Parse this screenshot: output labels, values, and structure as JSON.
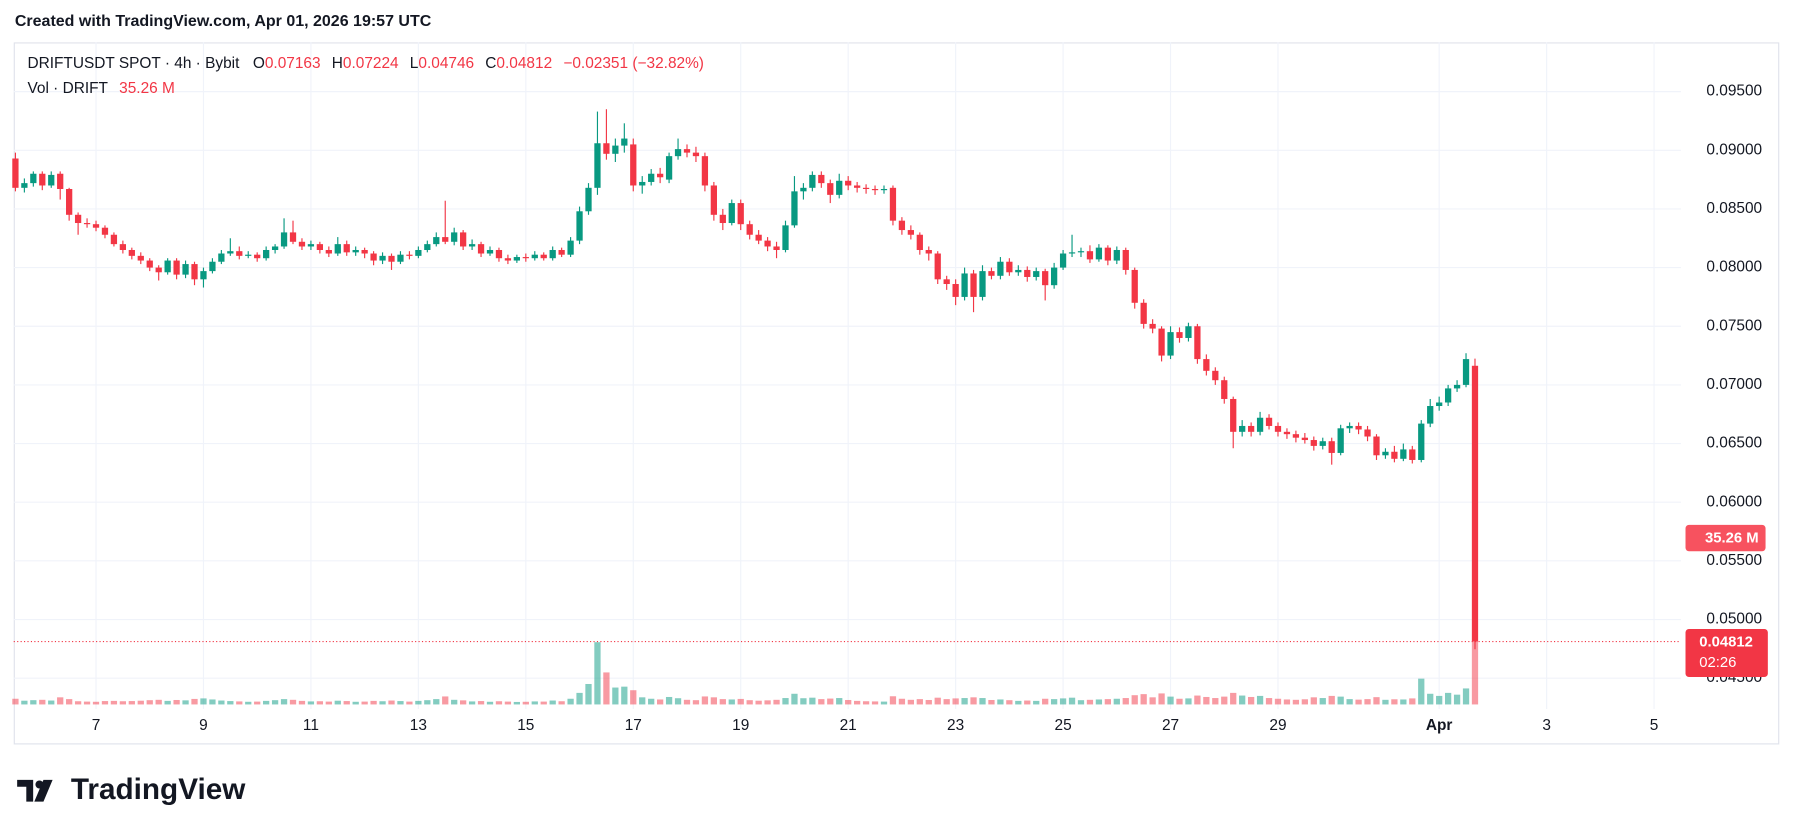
{
  "header": {
    "created": "Created with TradingView.com, Apr 01, 2026 19:57 UTC"
  },
  "chart_data": {
    "type": "candlestick",
    "title": "DRIFTUSDT SPOT · 4h · Bybit",
    "ohlc_labels": [
      "O",
      "H",
      "L",
      "C"
    ],
    "change": "−0.02351 (−32.82%)",
    "volume_title": "Vol · DRIFT",
    "volume_label": "35.26 M",
    "countdown": "02:26",
    "up_color": "#089981",
    "down_color": "#f23645",
    "grid": true,
    "xlim": [
      -0.19,
      186
    ],
    "ylim": [
      0.04237,
      0.0992
    ],
    "volume_lim": [
      0,
      36
    ],
    "yticks": [
      {
        "value": 0.045,
        "label": "0.04500"
      },
      {
        "value": 0.05,
        "label": "0.05000"
      },
      {
        "value": 0.055,
        "label": "0.05500"
      },
      {
        "value": 0.06,
        "label": "0.06000"
      },
      {
        "value": 0.065,
        "label": "0.06500"
      },
      {
        "value": 0.07,
        "label": "0.07000"
      },
      {
        "value": 0.075,
        "label": "0.07500"
      },
      {
        "value": 0.08,
        "label": "0.08000"
      },
      {
        "value": 0.085,
        "label": "0.08500"
      },
      {
        "value": 0.09,
        "label": "0.09000"
      },
      {
        "value": 0.095,
        "label": "0.09500"
      }
    ],
    "xticks": [
      {
        "value": 9,
        "label": "7"
      },
      {
        "value": 21,
        "label": "9"
      },
      {
        "value": 33,
        "label": "11"
      },
      {
        "value": 45,
        "label": "13"
      },
      {
        "value": 57,
        "label": "15"
      },
      {
        "value": 69,
        "label": "17"
      },
      {
        "value": 81,
        "label": "19"
      },
      {
        "value": 93,
        "label": "21"
      },
      {
        "value": 105,
        "label": "23"
      },
      {
        "value": 117,
        "label": "25"
      },
      {
        "value": 129,
        "label": "27"
      },
      {
        "value": 141,
        "label": "29"
      },
      {
        "value": 159,
        "label": "Apr"
      },
      {
        "value": 171,
        "label": "3"
      },
      {
        "value": 183,
        "label": "5"
      }
    ],
    "candles": [
      [
        0.0893,
        0.0898,
        0.0865,
        0.0868,
        3.2
      ],
      [
        0.0868,
        0.0876,
        0.0864,
        0.0872,
        2.1
      ],
      [
        0.0872,
        0.0882,
        0.0869,
        0.088,
        2.4
      ],
      [
        0.088,
        0.0882,
        0.0866,
        0.087,
        2.6
      ],
      [
        0.087,
        0.0882,
        0.0868,
        0.0879,
        2.2
      ],
      [
        0.088,
        0.0882,
        0.0858,
        0.0867,
        4.0
      ],
      [
        0.0867,
        0.0868,
        0.084,
        0.0845,
        3.0
      ],
      [
        0.0845,
        0.0847,
        0.0828,
        0.0838,
        1.8
      ],
      [
        0.0838,
        0.0842,
        0.0834,
        0.0837,
        1.6
      ],
      [
        0.0837,
        0.084,
        0.0831,
        0.0834,
        1.5
      ],
      [
        0.0834,
        0.0836,
        0.0825,
        0.0828,
        1.9
      ],
      [
        0.0828,
        0.083,
        0.0818,
        0.082,
        2.0
      ],
      [
        0.082,
        0.0823,
        0.0812,
        0.0815,
        1.8
      ],
      [
        0.0815,
        0.0817,
        0.0807,
        0.081,
        1.9
      ],
      [
        0.081,
        0.0813,
        0.0803,
        0.0806,
        2.1
      ],
      [
        0.0806,
        0.0808,
        0.0797,
        0.08,
        2.4
      ],
      [
        0.08,
        0.0802,
        0.0789,
        0.0796,
        2.6
      ],
      [
        0.0796,
        0.0808,
        0.0794,
        0.0806,
        2.0
      ],
      [
        0.0806,
        0.0808,
        0.079,
        0.0794,
        2.5
      ],
      [
        0.0794,
        0.0806,
        0.0791,
        0.0803,
        2.3
      ],
      [
        0.0803,
        0.0805,
        0.0785,
        0.079,
        3.1
      ],
      [
        0.079,
        0.08,
        0.0783,
        0.0797,
        3.4
      ],
      [
        0.0797,
        0.0808,
        0.0795,
        0.0805,
        2.8
      ],
      [
        0.0805,
        0.0815,
        0.0803,
        0.0812,
        2.2
      ],
      [
        0.0812,
        0.0825,
        0.081,
        0.0814,
        1.9
      ],
      [
        0.0814,
        0.0818,
        0.0807,
        0.081,
        1.7
      ],
      [
        0.081,
        0.0814,
        0.0808,
        0.0811,
        1.5
      ],
      [
        0.0811,
        0.0813,
        0.0805,
        0.0808,
        1.6
      ],
      [
        0.0808,
        0.0818,
        0.0806,
        0.0815,
        2.0
      ],
      [
        0.0815,
        0.082,
        0.0812,
        0.0818,
        2.4
      ],
      [
        0.0818,
        0.0842,
        0.0816,
        0.083,
        3.0
      ],
      [
        0.083,
        0.084,
        0.082,
        0.0822,
        2.6
      ],
      [
        0.0822,
        0.0825,
        0.0815,
        0.0818,
        2.0
      ],
      [
        0.0818,
        0.0823,
        0.0815,
        0.082,
        1.7
      ],
      [
        0.082,
        0.0822,
        0.0812,
        0.0815,
        1.8
      ],
      [
        0.0815,
        0.0818,
        0.0809,
        0.0812,
        1.6
      ],
      [
        0.0812,
        0.0826,
        0.081,
        0.082,
        2.1
      ],
      [
        0.082,
        0.0823,
        0.081,
        0.0813,
        1.9
      ],
      [
        0.0813,
        0.0818,
        0.081,
        0.0815,
        1.5
      ],
      [
        0.0815,
        0.0817,
        0.0808,
        0.0812,
        1.6
      ],
      [
        0.0812,
        0.0814,
        0.0802,
        0.0806,
        2.0
      ],
      [
        0.0806,
        0.0813,
        0.0803,
        0.081,
        1.8
      ],
      [
        0.081,
        0.0812,
        0.0798,
        0.0805,
        2.2
      ],
      [
        0.0805,
        0.0814,
        0.0803,
        0.0811,
        1.9
      ],
      [
        0.0811,
        0.0814,
        0.0807,
        0.081,
        1.6
      ],
      [
        0.081,
        0.0818,
        0.0808,
        0.0815,
        2.0
      ],
      [
        0.0815,
        0.0823,
        0.0813,
        0.082,
        2.4
      ],
      [
        0.082,
        0.083,
        0.0818,
        0.0826,
        3.0
      ],
      [
        0.0826,
        0.0857,
        0.082,
        0.0822,
        4.5
      ],
      [
        0.0822,
        0.0834,
        0.0819,
        0.083,
        2.6
      ],
      [
        0.083,
        0.0832,
        0.0815,
        0.0818,
        2.3
      ],
      [
        0.0818,
        0.0824,
        0.0815,
        0.082,
        1.7
      ],
      [
        0.082,
        0.0822,
        0.0809,
        0.0812,
        1.9
      ],
      [
        0.0812,
        0.0818,
        0.081,
        0.0815,
        1.5
      ],
      [
        0.0815,
        0.0817,
        0.0805,
        0.0808,
        1.8
      ],
      [
        0.0808,
        0.0811,
        0.0803,
        0.0806,
        1.6
      ],
      [
        0.0806,
        0.0811,
        0.0804,
        0.0809,
        1.4
      ],
      [
        0.0809,
        0.0812,
        0.0805,
        0.0808,
        1.5
      ],
      [
        0.0808,
        0.0814,
        0.0806,
        0.0811,
        1.7
      ],
      [
        0.0811,
        0.0813,
        0.0806,
        0.0808,
        1.6
      ],
      [
        0.0808,
        0.0818,
        0.0806,
        0.0815,
        2.2
      ],
      [
        0.0815,
        0.0817,
        0.0809,
        0.0811,
        1.8
      ],
      [
        0.0811,
        0.0826,
        0.0809,
        0.0823,
        3.2
      ],
      [
        0.0823,
        0.0852,
        0.082,
        0.0848,
        6.5
      ],
      [
        0.0848,
        0.0872,
        0.0845,
        0.0868,
        11.5
      ],
      [
        0.0868,
        0.0933,
        0.0862,
        0.0906,
        35.0
      ],
      [
        0.0906,
        0.0935,
        0.0892,
        0.0897,
        18.0
      ],
      [
        0.0897,
        0.091,
        0.089,
        0.0904,
        9.5
      ],
      [
        0.0904,
        0.0923,
        0.0898,
        0.091,
        10.0
      ],
      [
        0.0905,
        0.091,
        0.0865,
        0.087,
        8.0
      ],
      [
        0.087,
        0.0878,
        0.0863,
        0.0873,
        4.0
      ],
      [
        0.0873,
        0.0884,
        0.087,
        0.088,
        3.2
      ],
      [
        0.088,
        0.0885,
        0.0872,
        0.0877,
        2.8
      ],
      [
        0.0875,
        0.0898,
        0.0872,
        0.0895,
        4.2
      ],
      [
        0.0895,
        0.091,
        0.0892,
        0.0901,
        3.5
      ],
      [
        0.0901,
        0.0905,
        0.0894,
        0.0898,
        2.6
      ],
      [
        0.0898,
        0.0903,
        0.089,
        0.0895,
        2.4
      ],
      [
        0.0895,
        0.0898,
        0.0865,
        0.087,
        4.5
      ],
      [
        0.087,
        0.0873,
        0.084,
        0.0845,
        4.0
      ],
      [
        0.0845,
        0.085,
        0.0832,
        0.0838,
        3.0
      ],
      [
        0.0838,
        0.0858,
        0.0836,
        0.0855,
        2.8
      ],
      [
        0.0855,
        0.0858,
        0.0832,
        0.0837,
        3.1
      ],
      [
        0.0837,
        0.084,
        0.0824,
        0.0828,
        2.4
      ],
      [
        0.0828,
        0.0832,
        0.082,
        0.0823,
        2.1
      ],
      [
        0.0823,
        0.0826,
        0.0814,
        0.0818,
        2.3
      ],
      [
        0.0818,
        0.0822,
        0.0808,
        0.0815,
        2.6
      ],
      [
        0.0815,
        0.084,
        0.0813,
        0.0836,
        3.6
      ],
      [
        0.0836,
        0.0878,
        0.0834,
        0.0865,
        6.0
      ],
      [
        0.0865,
        0.0872,
        0.0858,
        0.0868,
        3.5
      ],
      [
        0.0868,
        0.0882,
        0.0865,
        0.0879,
        3.8
      ],
      [
        0.0879,
        0.0882,
        0.0868,
        0.0872,
        3.0
      ],
      [
        0.0872,
        0.0875,
        0.0855,
        0.0862,
        3.3
      ],
      [
        0.0862,
        0.088,
        0.0859,
        0.0874,
        3.6
      ],
      [
        0.0874,
        0.0878,
        0.0866,
        0.087,
        2.5
      ],
      [
        0.087,
        0.0873,
        0.0864,
        0.0868,
        2.0
      ],
      [
        0.0868,
        0.0871,
        0.0863,
        0.0867,
        1.8
      ],
      [
        0.0867,
        0.087,
        0.0862,
        0.0866,
        1.7
      ],
      [
        0.0866,
        0.087,
        0.0863,
        0.0867,
        1.6
      ],
      [
        0.0868,
        0.087,
        0.0836,
        0.084,
        4.6
      ],
      [
        0.084,
        0.0843,
        0.0828,
        0.0832,
        3.2
      ],
      [
        0.0832,
        0.0836,
        0.0824,
        0.0828,
        2.6
      ],
      [
        0.0828,
        0.083,
        0.0811,
        0.0815,
        3.0
      ],
      [
        0.0815,
        0.0818,
        0.0806,
        0.0812,
        2.5
      ],
      [
        0.0812,
        0.0814,
        0.0786,
        0.079,
        3.8
      ],
      [
        0.079,
        0.0793,
        0.0781,
        0.0786,
        3.0
      ],
      [
        0.0786,
        0.079,
        0.0768,
        0.0775,
        3.4
      ],
      [
        0.0775,
        0.08,
        0.0772,
        0.0795,
        3.6
      ],
      [
        0.0795,
        0.0798,
        0.0762,
        0.0775,
        4.0
      ],
      [
        0.0775,
        0.0802,
        0.0772,
        0.0797,
        3.6
      ],
      [
        0.0797,
        0.08,
        0.079,
        0.0793,
        2.5
      ],
      [
        0.0793,
        0.0809,
        0.079,
        0.0805,
        2.8
      ],
      [
        0.0805,
        0.0808,
        0.0793,
        0.0796,
        2.4
      ],
      [
        0.0796,
        0.0802,
        0.0793,
        0.0798,
        2.0
      ],
      [
        0.0798,
        0.0801,
        0.0788,
        0.0792,
        2.2
      ],
      [
        0.0792,
        0.08,
        0.0789,
        0.0797,
        2.0
      ],
      [
        0.0797,
        0.0799,
        0.0772,
        0.0785,
        3.2
      ],
      [
        0.0785,
        0.0804,
        0.0782,
        0.08,
        3.0
      ],
      [
        0.08,
        0.0815,
        0.0798,
        0.0812,
        3.4
      ],
      [
        0.0812,
        0.0828,
        0.0809,
        0.0813,
        3.8
      ],
      [
        0.0813,
        0.0817,
        0.0809,
        0.0814,
        2.4
      ],
      [
        0.0814,
        0.0819,
        0.0804,
        0.0807,
        2.6
      ],
      [
        0.0807,
        0.082,
        0.0805,
        0.0817,
        2.8
      ],
      [
        0.0817,
        0.0819,
        0.0802,
        0.0806,
        3.0
      ],
      [
        0.0806,
        0.0818,
        0.0803,
        0.0815,
        3.2
      ],
      [
        0.0815,
        0.0817,
        0.0794,
        0.0798,
        3.6
      ],
      [
        0.0798,
        0.08,
        0.0765,
        0.077,
        5.2
      ],
      [
        0.077,
        0.0773,
        0.0748,
        0.0752,
        5.8
      ],
      [
        0.0752,
        0.0756,
        0.0744,
        0.0748,
        4.0
      ],
      [
        0.0748,
        0.075,
        0.072,
        0.0725,
        6.2
      ],
      [
        0.0725,
        0.075,
        0.0722,
        0.0745,
        4.4
      ],
      [
        0.0745,
        0.0749,
        0.0736,
        0.074,
        3.2
      ],
      [
        0.074,
        0.0753,
        0.0737,
        0.075,
        3.4
      ],
      [
        0.075,
        0.0752,
        0.0718,
        0.0722,
        5.0
      ],
      [
        0.0722,
        0.0726,
        0.0708,
        0.0712,
        4.2
      ],
      [
        0.0712,
        0.0715,
        0.07,
        0.0704,
        3.6
      ],
      [
        0.0704,
        0.0707,
        0.0684,
        0.0688,
        4.4
      ],
      [
        0.0688,
        0.069,
        0.0646,
        0.066,
        6.5
      ],
      [
        0.066,
        0.067,
        0.0656,
        0.0665,
        5.0
      ],
      [
        0.0665,
        0.0668,
        0.0656,
        0.066,
        4.2
      ],
      [
        0.066,
        0.0677,
        0.0657,
        0.0672,
        4.8
      ],
      [
        0.0672,
        0.0675,
        0.0662,
        0.0665,
        3.6
      ],
      [
        0.0665,
        0.0668,
        0.0656,
        0.066,
        3.2
      ],
      [
        0.066,
        0.0663,
        0.0654,
        0.0658,
        2.8
      ],
      [
        0.0658,
        0.0661,
        0.0651,
        0.0655,
        2.6
      ],
      [
        0.0655,
        0.0659,
        0.065,
        0.0653,
        2.9
      ],
      [
        0.0653,
        0.0656,
        0.0644,
        0.0648,
        4.0
      ],
      [
        0.0648,
        0.0655,
        0.0645,
        0.0652,
        3.6
      ],
      [
        0.0652,
        0.0655,
        0.0632,
        0.0642,
        4.8
      ],
      [
        0.0642,
        0.0666,
        0.064,
        0.0663,
        4.4
      ],
      [
        0.0663,
        0.0668,
        0.0659,
        0.0665,
        3.0
      ],
      [
        0.0665,
        0.0668,
        0.0658,
        0.0662,
        2.7
      ],
      [
        0.0662,
        0.0665,
        0.0652,
        0.0656,
        3.0
      ],
      [
        0.0656,
        0.0658,
        0.0636,
        0.064,
        4.1
      ],
      [
        0.064,
        0.0646,
        0.0637,
        0.0643,
        2.6
      ],
      [
        0.0643,
        0.0648,
        0.0634,
        0.0637,
        2.9
      ],
      [
        0.0637,
        0.065,
        0.0635,
        0.0645,
        2.8
      ],
      [
        0.0645,
        0.0648,
        0.0633,
        0.0636,
        3.4
      ],
      [
        0.0636,
        0.067,
        0.0634,
        0.0667,
        14.5
      ],
      [
        0.0667,
        0.0688,
        0.0664,
        0.0682,
        6.0
      ],
      [
        0.0682,
        0.069,
        0.0678,
        0.0685,
        4.8
      ],
      [
        0.0685,
        0.07,
        0.0682,
        0.0697,
        6.5
      ],
      [
        0.0697,
        0.0704,
        0.0694,
        0.07,
        5.5
      ],
      [
        0.07,
        0.0727,
        0.0698,
        0.0722,
        9.0
      ],
      [
        0.07163,
        0.07224,
        0.04746,
        0.04812,
        35.26
      ]
    ]
  },
  "footer": {
    "logo_text": "TradingView"
  }
}
